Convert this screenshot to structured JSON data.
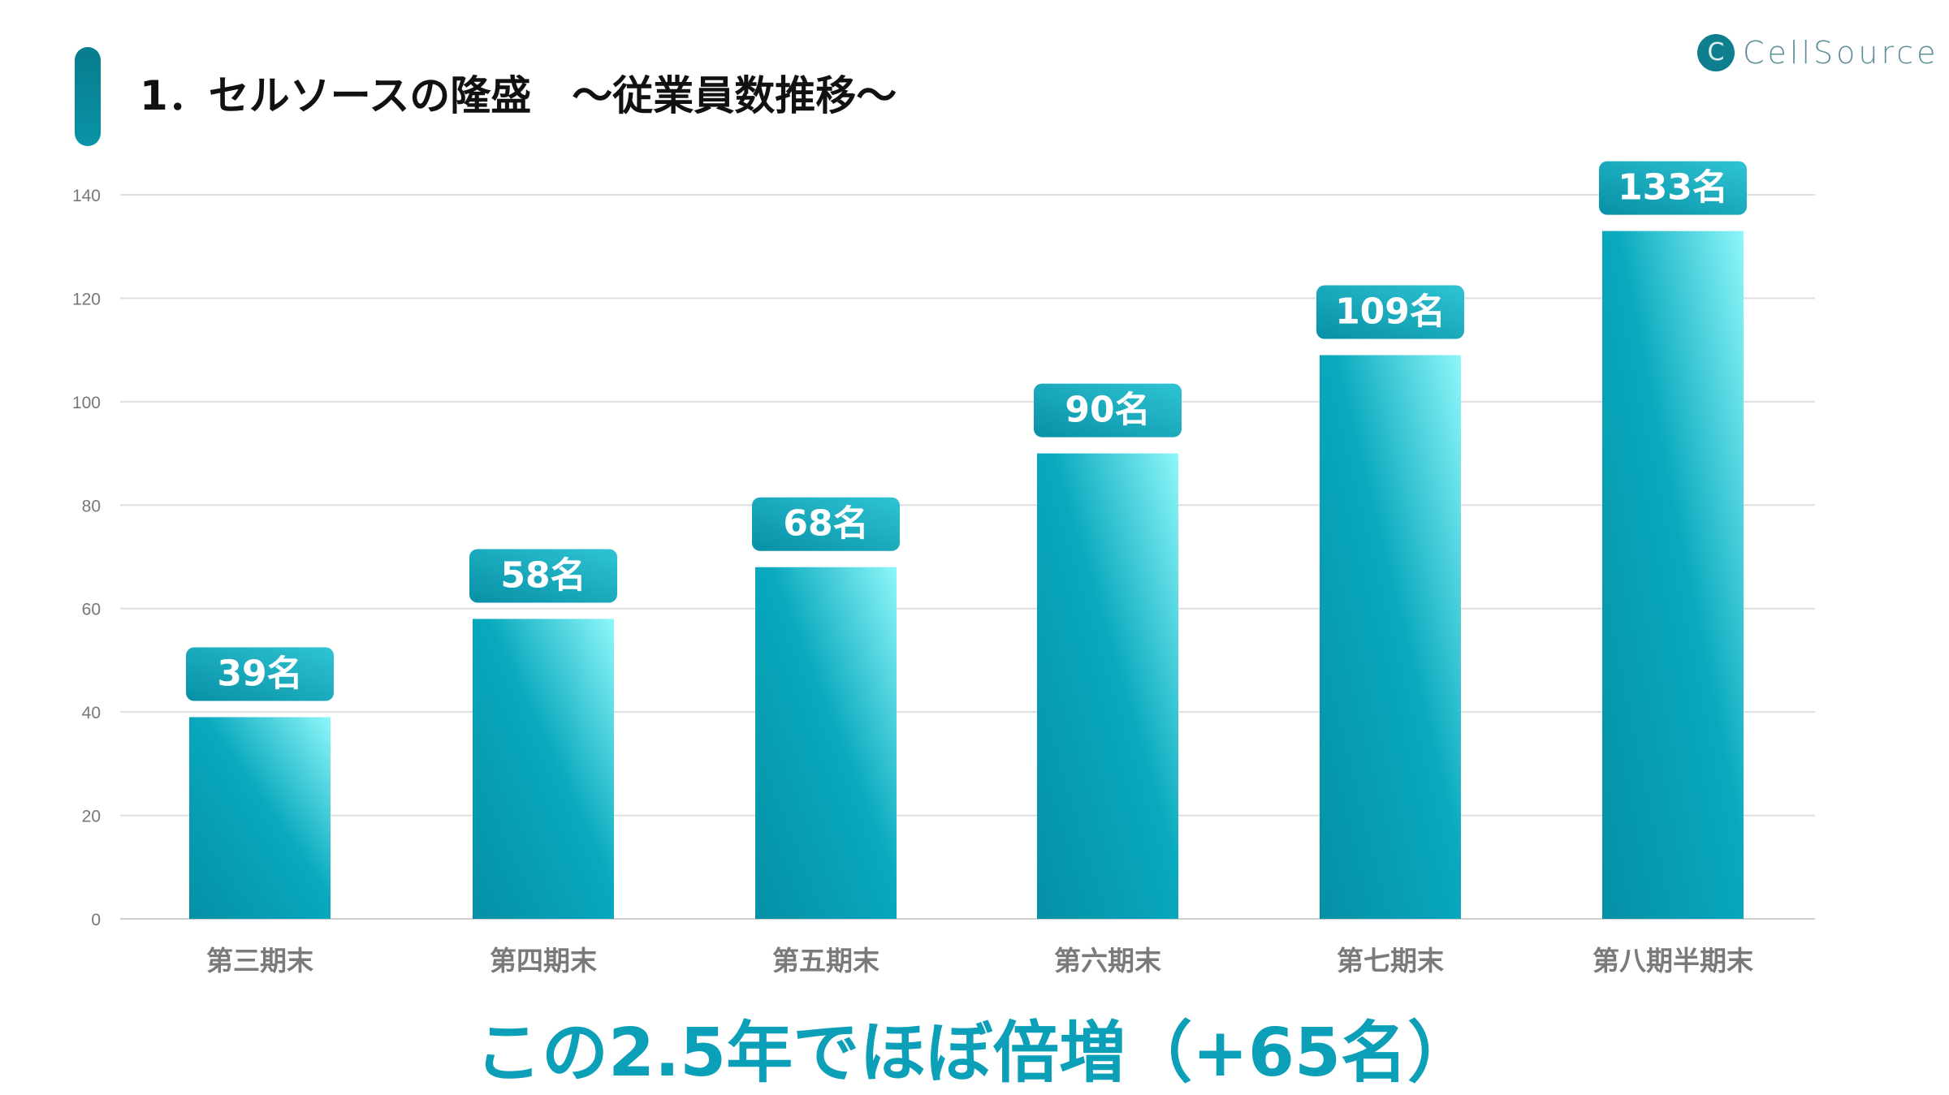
{
  "header": {
    "title": "1．セルソースの隆盛　～従業員数推移～"
  },
  "logo": {
    "mark": "C",
    "text": "CellSource"
  },
  "colors": {
    "accent": "#0a93a8",
    "bar_dark": "#0590a6",
    "bar_light": "#8ef7fa",
    "label_bg": "#0b9ab0",
    "headline": "#0b9fb8"
  },
  "chart_data": {
    "type": "bar",
    "title": "",
    "categories": [
      "第三期末",
      "第四期末",
      "第五期末",
      "第六期末",
      "第七期末",
      "第八期半期末"
    ],
    "values": [
      39,
      58,
      68,
      90,
      109,
      133
    ],
    "data_labels": [
      "39名",
      "58名",
      "68名",
      "90名",
      "109名",
      "133名"
    ],
    "xlabel": "",
    "ylabel": "",
    "ylim": [
      0,
      140
    ],
    "yticks": [
      0,
      20,
      40,
      60,
      80,
      100,
      120,
      140
    ],
    "grid": true
  },
  "footer": {
    "headline": "この2.5年でほぼ倍増（+65名）"
  }
}
